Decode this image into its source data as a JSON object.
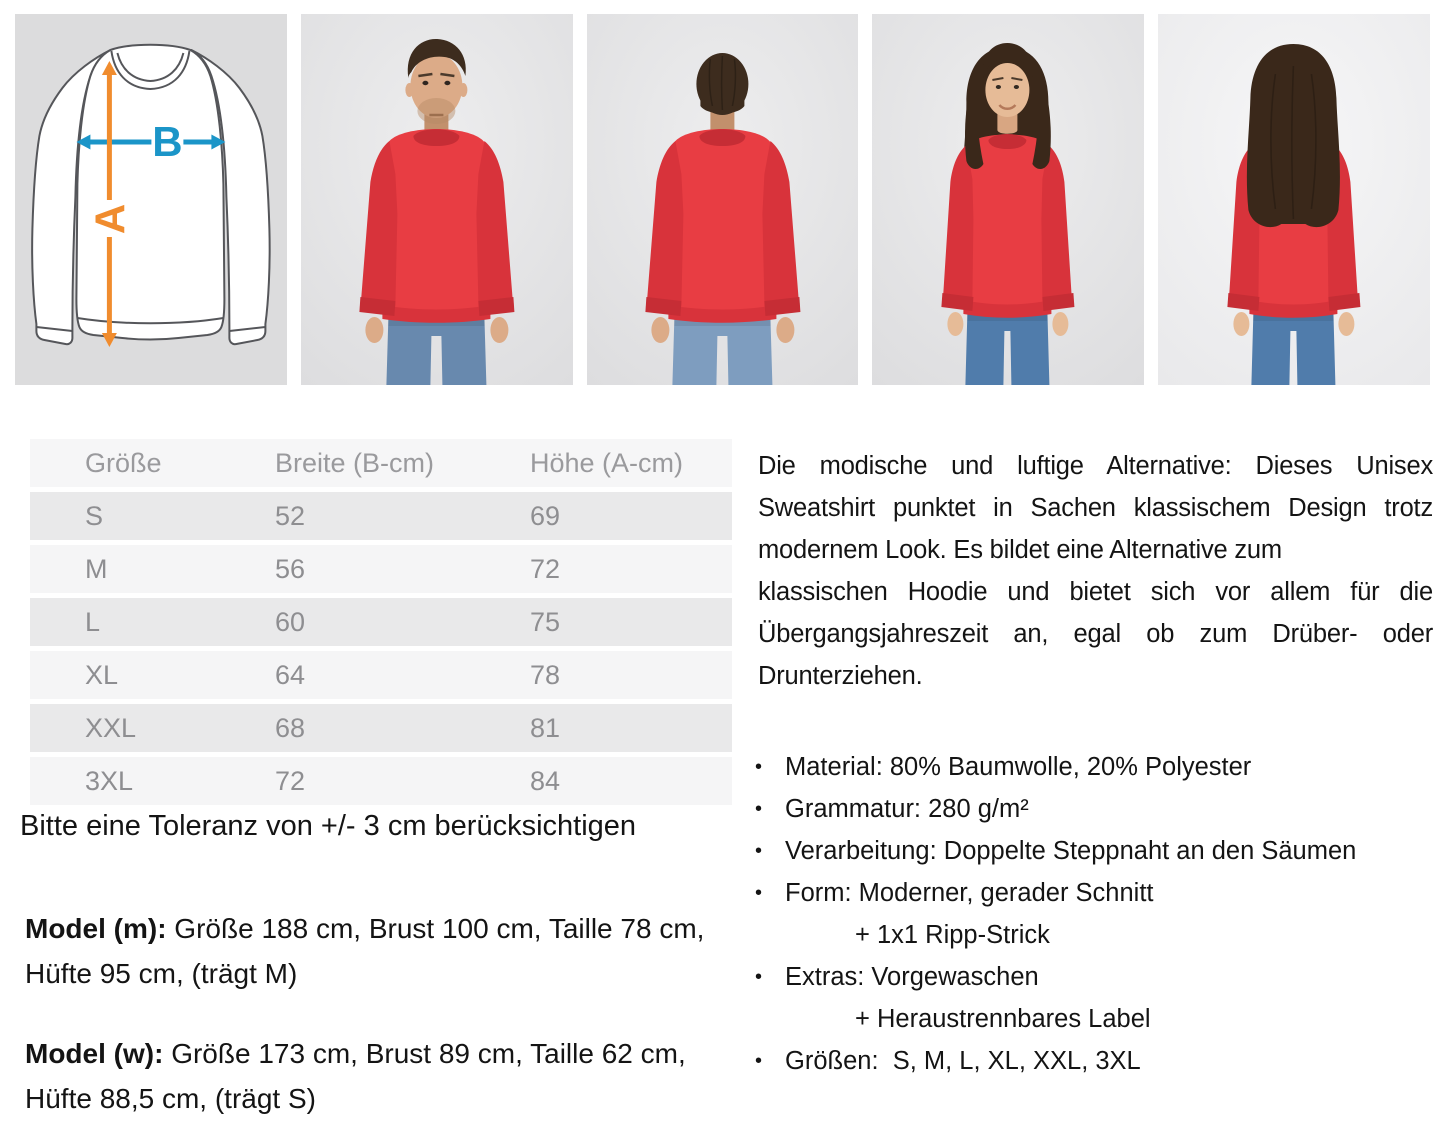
{
  "gallery": {
    "size_diagram": {
      "height_label": "A",
      "width_label": "B",
      "width_arrow_color": "#1b95c8",
      "height_arrow_color": "#f08c2e",
      "background": "#dcdcdd"
    },
    "sweatshirt_color": "#e83d43",
    "photos": [
      {
        "variant": "man-front",
        "description": "Male model, front view, red sweatshirt, blue jeans"
      },
      {
        "variant": "man-back",
        "description": "Male model, back view, red sweatshirt, blue jeans"
      },
      {
        "variant": "woman-front",
        "description": "Female model, front view, red sweatshirt, blue jeans"
      },
      {
        "variant": "woman-back",
        "description": "Female model, back view, red sweatshirt, blue jeans"
      }
    ]
  },
  "size_table": {
    "headers": [
      "Größe",
      "Breite (B-cm)",
      "Höhe (A-cm)"
    ],
    "rows": [
      [
        "S",
        "52",
        "69"
      ],
      [
        "M",
        "56",
        "72"
      ],
      [
        "L",
        "60",
        "75"
      ],
      [
        "XL",
        "64",
        "78"
      ],
      [
        "XXL",
        "68",
        "81"
      ],
      [
        "3XL",
        "72",
        "84"
      ]
    ]
  },
  "tolerance_note": "Bitte eine Toleranz von +/- 3 cm berücksichtigen",
  "models": {
    "m": {
      "label": "Model (m):",
      "text": " Größe 188 cm, Brust 100 cm, Taille 78 cm, Hüfte 95 cm, (trägt M)"
    },
    "w": {
      "label": "Model (w):",
      "text": " Größe 173 cm, Brust 89 cm, Taille 62 cm, Hüfte 88,5 cm, (trägt S)"
    }
  },
  "description": {
    "lines": [
      {
        "text": "Die modische und luftige Alternative: Dieses Unisex",
        "fill": true
      },
      {
        "text": "Sweatshirt punktet in Sachen klassischem Design trotz",
        "fill": true
      },
      {
        "text": "modernem Look. Es bildet eine Alternative zum",
        "fill": false
      },
      {
        "text": "klassischen Hoodie und bietet sich vor allem für die",
        "fill": true
      },
      {
        "text": "Übergangsjahreszeit an, egal ob zum Drüber- oder",
        "fill": true
      },
      {
        "text": "Drunterziehen.",
        "fill": false
      }
    ]
  },
  "features": [
    {
      "text": "Material: 80% Baumwolle, 20% Polyester",
      "bullet": true
    },
    {
      "text": "Grammatur: 280 g/m²",
      "bullet": true
    },
    {
      "text": "Verarbeitung: Doppelte Steppnaht an den Säumen",
      "bullet": true
    },
    {
      "text": "Form: Moderner, gerader Schnitt",
      "bullet": true
    },
    {
      "text": "+ 1x1 Ripp-Strick",
      "bullet": false
    },
    {
      "text": "Extras: Vorgewaschen",
      "bullet": true
    },
    {
      "text": "+ Heraustrennbares Label",
      "bullet": false
    },
    {
      "text": "Größen:  S, M, L, XL, XXL, 3XL",
      "bullet": true
    }
  ]
}
